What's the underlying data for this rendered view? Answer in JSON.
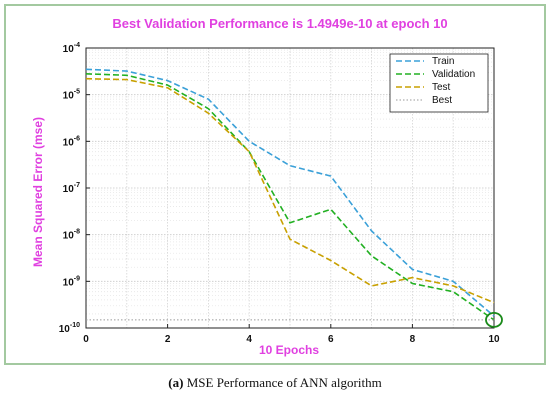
{
  "figure": {
    "caption_label": "(a)",
    "caption_text": " MSE Performance of ANN algorithm",
    "frame_color": "#a3c9a0"
  },
  "chart_data": {
    "type": "line",
    "title": "Best Validation Performance is 1.4949e-10 at epoch 10",
    "xlabel": "10 Epochs",
    "ylabel": "Mean Squared Error  (mse)",
    "yscale": "log",
    "xlim": [
      0,
      10
    ],
    "ylim": [
      1e-10,
      0.0001
    ],
    "x_ticks": [
      "0",
      "2",
      "4",
      "6",
      "8",
      "10"
    ],
    "y_ticks": [
      "10-10",
      "10-9",
      "10-8",
      "10-7",
      "10-6",
      "10-5",
      "10-4"
    ],
    "grid": true,
    "legend_position": "top-right",
    "label_color": "#e040e0",
    "x": [
      0,
      1,
      2,
      3,
      4,
      5,
      6,
      7,
      8,
      9,
      10
    ],
    "series": [
      {
        "name": "Train",
        "color": "#3aa0d8",
        "style": "dashed",
        "values": [
          3.5e-05,
          3.2e-05,
          2e-05,
          8e-06,
          1e-06,
          3e-07,
          1.8e-07,
          1.2e-08,
          1.8e-09,
          1e-09,
          1.8e-10
        ]
      },
      {
        "name": "Validation",
        "color": "#22b022",
        "style": "dashed",
        "values": [
          2.8e-05,
          2.6e-05,
          1.6e-05,
          5e-06,
          6e-07,
          1.8e-08,
          3.5e-08,
          3.5e-09,
          9e-10,
          6e-10,
          1.4949e-10
        ]
      },
      {
        "name": "Test",
        "color": "#c8a000",
        "style": "dashed",
        "values": [
          2.2e-05,
          2.1e-05,
          1.4e-05,
          4e-06,
          6e-07,
          8e-09,
          2.8e-09,
          8e-10,
          1.2e-09,
          8e-10,
          3.5e-10
        ]
      },
      {
        "name": "Best",
        "color": "#9a9a9a",
        "style": "dotted",
        "values": [
          1.4949e-10,
          1.4949e-10,
          1.4949e-10,
          1.4949e-10,
          1.4949e-10,
          1.4949e-10,
          1.4949e-10,
          1.4949e-10,
          1.4949e-10,
          1.4949e-10,
          1.4949e-10
        ]
      }
    ],
    "best_marker": {
      "x": 10,
      "y": 1.4949e-10,
      "color": "#1a8a1a"
    }
  }
}
